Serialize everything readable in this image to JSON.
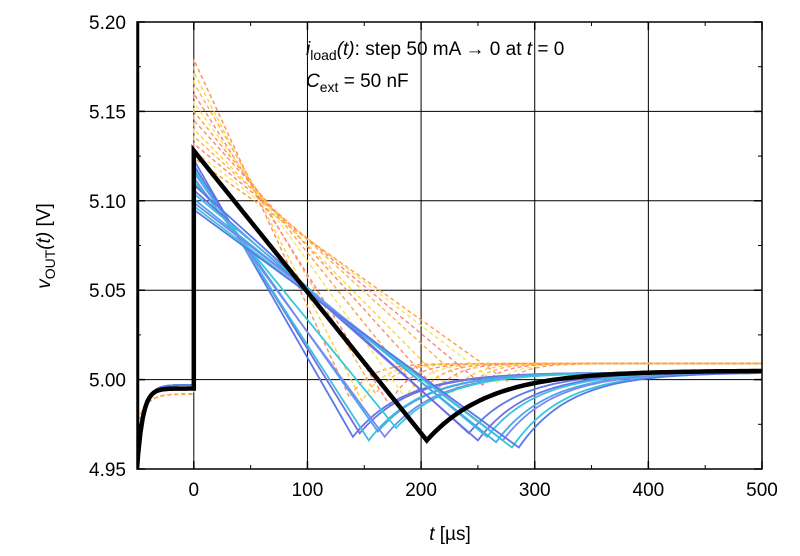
{
  "chart_data": {
    "type": "line",
    "title": "",
    "annotation": {
      "line1_i": "i",
      "line1_sub": "load",
      "line1_t": "(t)",
      "line1_rest": ": step 50 mA → 0 at ",
      "line1_t2": "t",
      "line1_end": " = 0",
      "line2_c": "C",
      "line2_sub": "ext",
      "line2_rest": " = 50 nF"
    },
    "xlabel": {
      "symbol": "t",
      "unit": " [µs]"
    },
    "ylabel": {
      "symbol": "v",
      "sub": "OUT",
      "arg": "(t)",
      "unit": " [V]"
    },
    "xlim": [
      -50,
      500
    ],
    "ylim": [
      4.95,
      5.2
    ],
    "xticks": [
      0,
      100,
      200,
      300,
      400,
      500
    ],
    "yticks": [
      4.95,
      5.0,
      5.05,
      5.1,
      5.15,
      5.2
    ],
    "ytick_labels": [
      "4.95",
      "5.00",
      "5.05",
      "5.10",
      "5.15",
      "5.20"
    ],
    "grid": true,
    "colors": {
      "main": "#000000",
      "solid_family": [
        "#5a78e8",
        "#6f6fe0",
        "#3fbfe0",
        "#4aa8e8",
        "#7a88f0",
        "#35c8d8"
      ],
      "dashed_family": [
        "#ff8c5a",
        "#ffd23a",
        "#ffb347",
        "#ff7f7f",
        "#f7e45a",
        "#ff9f40"
      ]
    },
    "main_series": {
      "name": "",
      "t0_peak": 5.128,
      "min_t": 205,
      "min_v": 4.966,
      "pre_min": 4.95,
      "pre_settle": 4.995,
      "final": 5.005
    },
    "solid_family": [
      {
        "peak": 5.123,
        "min_t": 140,
        "min_v": 4.968
      },
      {
        "peak": 5.12,
        "min_t": 146,
        "min_v": 4.97
      },
      {
        "peak": 5.118,
        "min_t": 154,
        "min_v": 4.966
      },
      {
        "peak": 5.116,
        "min_t": 162,
        "min_v": 4.971
      },
      {
        "peak": 5.113,
        "min_t": 168,
        "min_v": 4.968
      },
      {
        "peak": 5.111,
        "min_t": 178,
        "min_v": 4.973
      },
      {
        "peak": 5.109,
        "min_t": 242,
        "min_v": 4.97
      },
      {
        "peak": 5.106,
        "min_t": 250,
        "min_v": 4.966
      },
      {
        "peak": 5.104,
        "min_t": 258,
        "min_v": 4.968
      },
      {
        "peak": 5.101,
        "min_t": 266,
        "min_v": 4.965
      },
      {
        "peak": 5.099,
        "min_t": 272,
        "min_v": 4.966
      },
      {
        "peak": 5.097,
        "min_t": 280,
        "min_v": 4.962
      },
      {
        "peak": 5.095,
        "min_t": 286,
        "min_v": 4.962
      }
    ],
    "dashed_family": [
      {
        "peak": 5.179,
        "min_t": 137,
        "min_v": 4.99
      },
      {
        "peak": 5.172,
        "min_t": 148,
        "min_v": 4.988
      },
      {
        "peak": 5.166,
        "min_t": 160,
        "min_v": 4.992
      },
      {
        "peak": 5.16,
        "min_t": 172,
        "min_v": 4.986
      },
      {
        "peak": 5.155,
        "min_t": 186,
        "min_v": 4.99
      },
      {
        "peak": 5.15,
        "min_t": 200,
        "min_v": 4.992
      },
      {
        "peak": 5.145,
        "min_t": 214,
        "min_v": 4.994
      },
      {
        "peak": 5.14,
        "min_t": 228,
        "min_v": 4.993
      },
      {
        "peak": 5.136,
        "min_t": 242,
        "min_v": 4.996
      },
      {
        "peak": 5.132,
        "min_t": 254,
        "min_v": 4.997
      },
      {
        "peak": 5.128,
        "min_t": 266,
        "min_v": 4.998
      },
      {
        "peak": 5.124,
        "min_t": 276,
        "min_v": 4.999
      }
    ]
  }
}
